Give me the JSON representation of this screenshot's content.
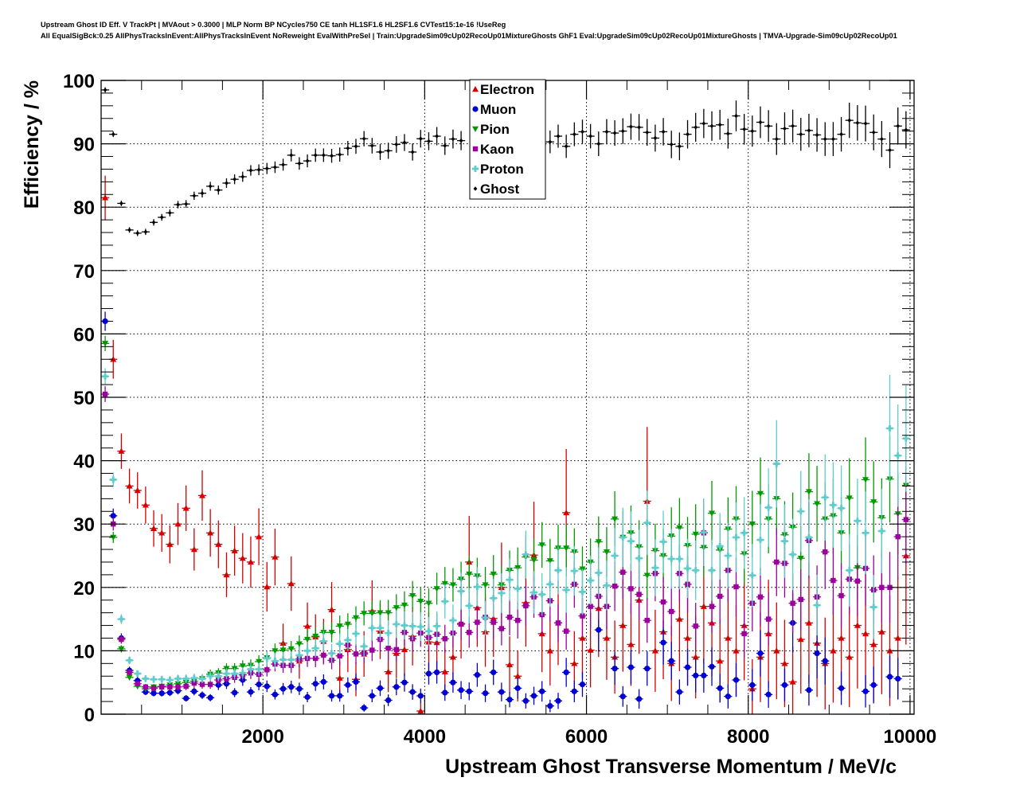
{
  "chart_data": {
    "type": "scatter",
    "title_line1": "Upstream Ghost ID Eff. V TrackPt | MVAout > 0.3000 | MLP Norm BP NCycles750 CE tanh HL1SF1.6 HL2SF1.6 CVTest15:1e-16 !UseReg",
    "title_line2": "All EqualSigBck:0.25 AllPhysTracksInEvent:AllPhysTracksInEvent NoReweight EvalWithPreSel | Train:UpgradeSim09cUp02RecoUp01MixtureGhosts GhF1 Eval:UpgradeSim09cUp02RecoUp01MixtureGhosts | TMVA-Upgrade-Sim09cUp02RecoUp01",
    "xlabel": "Upstream Ghost Transverse Momentum / MeV/c",
    "ylabel": "Efficiency / %",
    "xlim": [
      0,
      10050
    ],
    "ylim": [
      0,
      100
    ],
    "x_ticks": [
      2000,
      4000,
      6000,
      8000,
      10000
    ],
    "x_tick_labels": [
      "2000",
      "4000",
      "6000",
      "8000",
      "10000"
    ],
    "y_ticks": [
      0,
      10,
      20,
      30,
      40,
      50,
      60,
      70,
      80,
      90,
      100
    ],
    "y_tick_labels": [
      "0",
      "10",
      "20",
      "30",
      "40",
      "50",
      "60",
      "70",
      "80",
      "90",
      "100"
    ],
    "grid": true,
    "legend_position": "top-center",
    "bin_width": 100,
    "x_first_bin_center": 50,
    "series": [
      {
        "name": "Electron",
        "color": "#d40000",
        "marker": "triangle-up",
        "values": [
          81.5,
          56,
          41.5,
          36,
          35.3,
          33,
          29.3,
          28.6,
          26.8,
          30,
          32.5,
          26,
          34.5,
          28.6,
          26.8,
          22,
          25.8,
          24.6,
          24,
          28,
          20.1,
          24.8,
          11.2,
          20.6,
          8.4,
          13.9,
          12.2,
          11.5,
          16.5,
          5.7,
          10.2,
          5.5,
          9.5,
          16.3,
          13.1,
          6.7,
          9.6,
          10.2,
          12.3,
          0.5,
          11.4,
          11.3,
          6.7,
          9,
          14.3,
          24,
          16.8,
          13,
          15.1,
          20,
          7.8,
          6,
          17.6,
          25.1,
          12.7,
          10,
          14.4,
          31.8,
          8,
          12,
          10.1,
          16.7,
          12,
          9,
          14,
          11,
          18,
          33.6,
          10,
          13,
          8,
          15,
          12,
          9,
          17,
          14.4,
          8.4,
          12,
          10,
          14,
          4,
          9,
          12.7,
          10,
          8,
          5.1,
          11.8,
          14.4,
          11.2,
          8,
          10,
          12,
          9,
          14,
          12.7,
          11,
          13,
          10,
          12,
          25
        ]
      },
      {
        "name": "Muon",
        "color": "#0000d0",
        "marker": "circle",
        "values": [
          62,
          31.3,
          12,
          6.9,
          5.3,
          3.5,
          3.3,
          3.3,
          3.4,
          3.7,
          2.5,
          3.6,
          3.0,
          2.6,
          4.6,
          4.8,
          3.4,
          5.4,
          3.5,
          4.7,
          4.4,
          3.1,
          4.0,
          4.3,
          4.0,
          2.7,
          4.8,
          5.1,
          2.9,
          2.9,
          4.6,
          5.1,
          1.0,
          2.9,
          4.1,
          2.2,
          4.3,
          5.0,
          3.5,
          2.9,
          6.4,
          6.6,
          3.4,
          5.0,
          3.8,
          3.6,
          6.2,
          3.3,
          6.6,
          3.5,
          2.3,
          4.1,
          2.1,
          2.9,
          3.6,
          1.3,
          2.1,
          6.6,
          3.6,
          4.7,
          null,
          13.3,
          null,
          7.2,
          2.8,
          7.4,
          2.4,
          7.2,
          null,
          11.3,
          8.4,
          3.5,
          7.4,
          6.1,
          6.1,
          7.5,
          4.1,
          2.8,
          5.4,
          null,
          4.6,
          9.6,
          3.1,
          null,
          4.6,
          14.4,
          null,
          3.8,
          9.6,
          8.4,
          null,
          4.1,
          null,
          null,
          3.6,
          4.6,
          null,
          5.9,
          5.6,
          null
        ]
      },
      {
        "name": "Pion",
        "color": "#009a00",
        "marker": "triangle-down",
        "values": [
          58.5,
          27.9,
          10.3,
          5.8,
          4.4,
          4.0,
          4.3,
          4.4,
          4.6,
          4.8,
          5.0,
          5.2,
          5.6,
          6.3,
          6.5,
          7.2,
          7.2,
          7.6,
          7.7,
          8.3,
          8.9,
          10.0,
          10.1,
          10.3,
          11.1,
          11.8,
          12.3,
          12.9,
          12.9,
          13.9,
          14.2,
          15.2,
          15.9,
          15.9,
          16.0,
          16.0,
          16.8,
          17.2,
          18.7,
          17.8,
          17.5,
          19.8,
          20.6,
          20.4,
          21.3,
          22.1,
          21.8,
          20.4,
          22.1,
          20.4,
          22.7,
          23.1,
          24.8,
          24.3,
          26.7,
          24.2,
          26.2,
          26.2,
          25.6,
          22.9,
          24.0,
          27.2,
          25.6,
          30.8,
          27.9,
          28.6,
          26.4,
          21.9,
          25.8,
          25,
          28.1,
          29.4,
          26.6,
          28.4,
          26.3,
          31.7,
          25.9,
          29.2,
          30.8,
          25.3,
          30.0,
          34.8,
          30.8,
          34.0,
          28.3,
          29.5,
          24.6,
          35.1,
          33.2,
          30.8,
          31.3,
          28.6,
          34.1,
          23.1,
          37.0,
          33.5,
          31.0,
          37.1,
          31.6,
          36.1
        ]
      },
      {
        "name": "Kaon",
        "color": "#9c009c",
        "marker": "square",
        "values": [
          50.5,
          30,
          11.8,
          6.6,
          4.8,
          4.3,
          4.1,
          4.3,
          4.3,
          4.3,
          4.4,
          4.9,
          4.7,
          4.7,
          5.4,
          5.6,
          5.8,
          6.2,
          6.5,
          6.3,
          7.0,
          7.9,
          7.7,
          7.7,
          8.7,
          8.8,
          8.8,
          9.3,
          8.5,
          9.2,
          10.9,
          9.5,
          9.7,
          10.1,
          11.8,
          10.4,
          10.2,
          12.9,
          11.9,
          12.8,
          12.1,
          12.6,
          11.9,
          12.8,
          14.2,
          12.9,
          14.5,
          15.3,
          14.5,
          13.5,
          15.3,
          14.8,
          17.1,
          18.5,
          15.7,
          17.9,
          14.4,
          13.1,
          20.5,
          15.5,
          17.0,
          18.6,
          17.0,
          20.2,
          22.4,
          19.8,
          18.9,
          14.8,
          22.2,
          17.7,
          16.2,
          22.2,
          20.5,
          13.9,
          28.6,
          17.0,
          18.6,
          22.7,
          20.1,
          12.7,
          17.5,
          18.5,
          15.0,
          24.0,
          23.8,
          17.5,
          18.1,
          27.4,
          18.5,
          25.6,
          21.1,
          18.7,
          21.3,
          21.0,
          23.0,
          19.6,
          20.0,
          20.0,
          28.0,
          30.7
        ]
      },
      {
        "name": "Proton",
        "color": "#5fcccc",
        "marker": "cross",
        "values": [
          53.3,
          37,
          15,
          8.5,
          6.4,
          5.6,
          5.5,
          5.5,
          5.4,
          5.6,
          5.6,
          5.7,
          5.6,
          6.0,
          6.0,
          6.4,
          6.4,
          6.5,
          7.1,
          7.1,
          8.8,
          8.4,
          8.6,
          8.6,
          9.3,
          10.0,
          10.4,
          11.5,
          9.6,
          11.1,
          11.7,
          12.7,
          10.7,
          13.6,
          13.6,
          12.8,
          14.2,
          14.0,
          13.9,
          13.8,
          13.1,
          13.9,
          17.8,
          14.8,
          19.4,
          17.1,
          20.1,
          15.2,
          18.3,
          19.1,
          21.2,
          19.8,
          25.2,
          19.2,
          18.9,
          20.5,
          22.7,
          19.6,
          22.6,
          19.3,
          21.1,
          22.3,
          20.3,
          25.0,
          27.9,
          27.3,
          24.6,
          30.2,
          23.1,
          27.2,
          24.5,
          24.5,
          23.0,
          22.7,
          28.7,
          22.7,
          26.5,
          25,
          27.9,
          28.6,
          21.9,
          27.5,
          32.6,
          39.5,
          27.3,
          25.2,
          32.0,
          27.9,
          17.2,
          34.2,
          33.0,
          32.5,
          22.7,
          30.5,
          28.6,
          16.9,
          28.9,
          45.1,
          40.8,
          43.5
        ]
      },
      {
        "name": "Ghost",
        "color": "#000000",
        "marker": "diamond",
        "values": [
          98.5,
          91.5,
          80.6,
          76.4,
          75.9,
          76.1,
          77.6,
          78.4,
          79.1,
          80.4,
          80.5,
          81.8,
          82.2,
          83.3,
          82.7,
          83.8,
          84.4,
          84.8,
          85.8,
          85.9,
          86.1,
          86.3,
          86.7,
          88.2,
          86.9,
          87.3,
          88.2,
          88.2,
          88.1,
          88.3,
          89.3,
          89.6,
          90.8,
          89.7,
          88.7,
          88.9,
          89.9,
          90.2,
          88.7,
          90.8,
          90.4,
          91.2,
          89.7,
          90.75,
          90.5,
          null,
          null,
          null,
          null,
          null,
          null,
          null,
          null,
          null,
          null,
          90.3,
          91.2,
          89.6,
          91.5,
          91.9,
          91.2,
          90,
          91.9,
          91.7,
          92,
          92.7,
          92.6,
          91.8,
          90.9,
          91.9,
          89.9,
          89.6,
          91.5,
          92.6,
          93.2,
          92.8,
          93,
          91.6,
          94.4,
          92.3,
          92,
          93.4,
          92.8,
          90.75,
          92.4,
          92.8,
          91.5,
          92.1,
          91.4,
          90.75,
          90.75,
          91.5,
          93.7,
          93.3,
          93.2,
          91.8,
          90.75,
          89,
          92.8,
          92.2
        ]
      }
    ]
  }
}
